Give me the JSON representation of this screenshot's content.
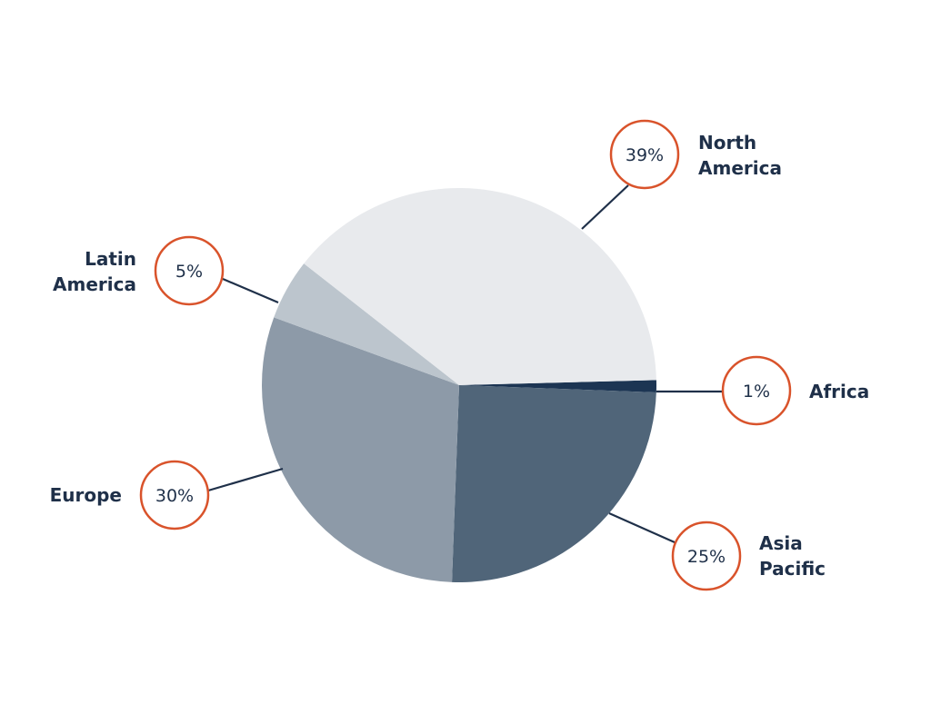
{
  "chart_data": {
    "type": "pie",
    "title": "",
    "direction": "clockwise from 3 o'clock",
    "slices": [
      {
        "label": "Africa",
        "label_lines": [
          "Africa"
        ],
        "value": 1,
        "value_label": "1%",
        "color": "#1c3553"
      },
      {
        "label": "Asia Pacific",
        "label_lines": [
          "Asia",
          "Pacific"
        ],
        "value": 25,
        "value_label": "25%",
        "color": "#506579"
      },
      {
        "label": "Europe",
        "label_lines": [
          "Europe"
        ],
        "value": 30,
        "value_label": "30%",
        "color": "#8d9aa8"
      },
      {
        "label": "Latin America",
        "label_lines": [
          "Latin",
          "America"
        ],
        "value": 5,
        "value_label": "5%",
        "color": "#bcc5cd"
      },
      {
        "label": "North America",
        "label_lines": [
          "North",
          "America"
        ],
        "value": 39,
        "value_label": "39%",
        "color": "#e8eaed"
      }
    ],
    "legend": "none (callout labels)",
    "callout_circle_color": "#d9532b",
    "text_color": "#1f3049",
    "leader_line_color": "#1f3049"
  }
}
